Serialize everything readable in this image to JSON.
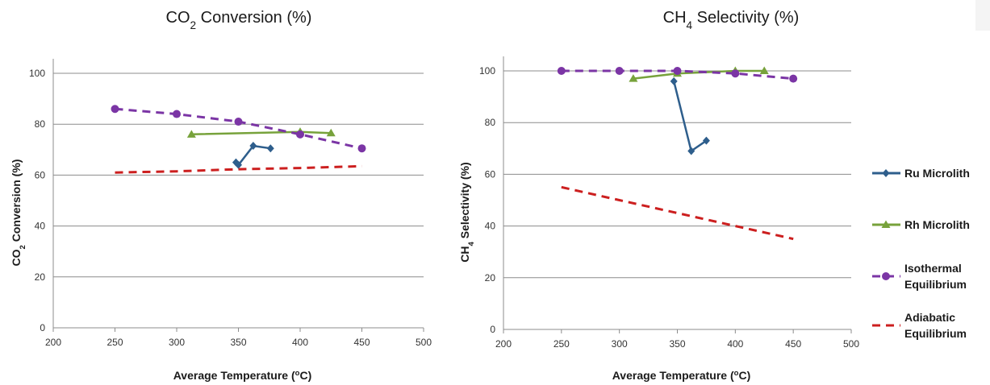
{
  "chart_data": [
    {
      "type": "line",
      "title": "CO2 Conversion (%)",
      "xlabel": "Average Temperature (oC)",
      "ylabel": "CO2 Conversion (%)",
      "xlim": [
        200,
        500
      ],
      "ylim": [
        0,
        100
      ],
      "xticks": [
        200,
        250,
        300,
        350,
        400,
        450,
        500
      ],
      "yticks": [
        0,
        20,
        40,
        60,
        80,
        100
      ],
      "grid": "horizontal",
      "series": [
        {
          "name": "Ru Microlith",
          "color": "#2e5e8c",
          "marker": "diamond",
          "dash": "solid",
          "points": [
            [
              348,
              65
            ],
            [
              350,
              64
            ],
            [
              362,
              71.5
            ],
            [
              376,
              70.5
            ]
          ]
        },
        {
          "name": "Rh Microlith",
          "color": "#77a23b",
          "marker": "triangle",
          "dash": "solid",
          "points": [
            [
              312,
              76
            ],
            [
              400,
              77
            ],
            [
              425,
              76.5
            ]
          ]
        },
        {
          "name": "Isothermal Equilibrium",
          "color": "#7b35a5",
          "marker": "circle",
          "dash": "dashed",
          "points": [
            [
              250,
              86
            ],
            [
              300,
              84
            ],
            [
              350,
              81
            ],
            [
              400,
              76
            ],
            [
              450,
              70.5
            ]
          ]
        },
        {
          "name": "Adiabatic Equilibrium",
          "color": "#cc1f1f",
          "marker": "none",
          "dash": "dashed",
          "points": [
            [
              250,
              61
            ],
            [
              300,
              61.5
            ],
            [
              350,
              62.3
            ],
            [
              400,
              62.8
            ],
            [
              450,
              63.5
            ]
          ]
        }
      ]
    },
    {
      "type": "line",
      "title": "CH4 Selectivity (%)",
      "xlabel": "Average Temperature (oC)",
      "ylabel": "CH4 Selectivity (%)",
      "xlim": [
        200,
        500
      ],
      "ylim": [
        0,
        100
      ],
      "xticks": [
        200,
        250,
        300,
        350,
        400,
        450,
        500
      ],
      "yticks": [
        0,
        20,
        40,
        60,
        80,
        100
      ],
      "grid": "horizontal",
      "series": [
        {
          "name": "Ru Microlith",
          "color": "#2e5e8c",
          "marker": "diamond",
          "dash": "solid",
          "points": [
            [
              347,
              96
            ],
            [
              362,
              69
            ],
            [
              375,
              73
            ]
          ]
        },
        {
          "name": "Rh Microlith",
          "color": "#77a23b",
          "marker": "triangle",
          "dash": "solid",
          "points": [
            [
              312,
              97
            ],
            [
              350,
              99
            ],
            [
              400,
              100
            ],
            [
              425,
              100
            ]
          ]
        },
        {
          "name": "Isothermal Equilibrium",
          "color": "#7b35a5",
          "marker": "circle",
          "dash": "dashed",
          "points": [
            [
              250,
              100
            ],
            [
              300,
              100
            ],
            [
              350,
              100
            ],
            [
              400,
              99
            ],
            [
              450,
              97
            ]
          ]
        },
        {
          "name": "Adiabatic Equilibrium",
          "color": "#cc1f1f",
          "marker": "none",
          "dash": "dashed",
          "points": [
            [
              250,
              55
            ],
            [
              300,
              50
            ],
            [
              350,
              45
            ],
            [
              400,
              40
            ],
            [
              450,
              35
            ]
          ]
        }
      ]
    }
  ],
  "legend": {
    "placement": "right",
    "items": [
      {
        "label_lines": [
          "Ru Microlith"
        ],
        "color": "#2e5e8c",
        "marker": "diamond",
        "dash": "solid"
      },
      {
        "label_lines": [
          "Rh Microlith"
        ],
        "color": "#77a23b",
        "marker": "triangle",
        "dash": "solid"
      },
      {
        "label_lines": [
          "Isothermal",
          "Equilibrium"
        ],
        "color": "#7b35a5",
        "marker": "circle",
        "dash": "dashed"
      },
      {
        "label_lines": [
          "Adiabatic",
          "Equilibrium"
        ],
        "color": "#cc1f1f",
        "marker": "none",
        "dash": "dashed"
      }
    ]
  }
}
